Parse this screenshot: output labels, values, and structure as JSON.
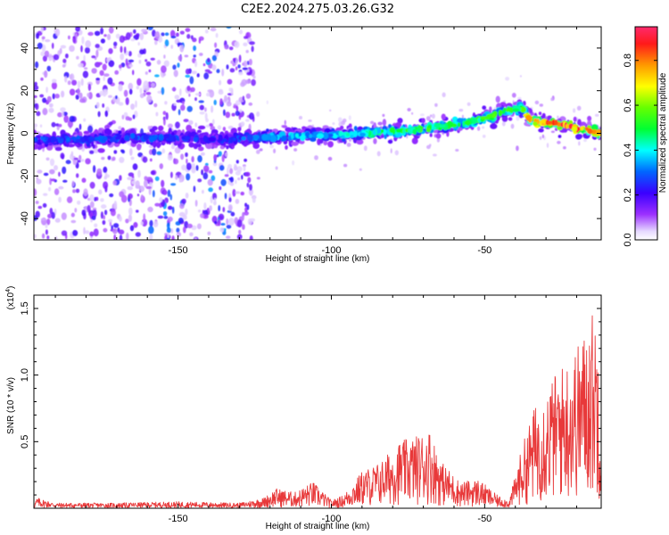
{
  "title": "C2E2.2024.275.03.26.G32",
  "chart_data": [
    {
      "type": "heatmap",
      "xlabel": "Height of straight line (km)",
      "ylabel": "Frequency (Hz)",
      "xlim": [
        -197,
        -12
      ],
      "ylim": [
        -50,
        50
      ],
      "x_ticks": [
        -150,
        -100,
        -50
      ],
      "y_ticks": [
        40,
        20,
        0,
        -20,
        -40
      ],
      "colorbar": {
        "label": "Normalized spectral amplitude",
        "range": [
          0.0,
          0.95
        ],
        "ticks": [
          0.0,
          0.2,
          0.4,
          0.6,
          0.8
        ]
      },
      "ridge": {
        "x": [
          -197,
          -180,
          -165,
          -150,
          -135,
          -125,
          -110,
          -100,
          -90,
          -80,
          -70,
          -60,
          -50,
          -42,
          -38,
          -35,
          -25,
          -12
        ],
        "y": [
          -3,
          -3,
          -2,
          -2,
          -3,
          -2,
          -1,
          -1,
          0,
          1,
          2,
          4,
          7,
          11,
          12,
          6,
          4,
          0
        ],
        "amplitude": [
          0.3,
          0.3,
          0.3,
          0.28,
          0.25,
          0.35,
          0.4,
          0.38,
          0.45,
          0.5,
          0.55,
          0.5,
          0.55,
          0.55,
          0.5,
          0.85,
          0.9,
          0.85
        ]
      },
      "noise_region": {
        "x_range": [
          -197,
          -125
        ],
        "level": 0.2
      }
    },
    {
      "type": "line",
      "xlabel": "Height of straight line (km)",
      "ylabel": "SNR (10 * v/v)",
      "y_multiplier": "(x10",
      "y_multiplier_exp": "4",
      "y_multiplier_close": ")",
      "xlim": [
        -197,
        -12
      ],
      "ylim": [
        0,
        1.6
      ],
      "x_ticks": [
        -150,
        -100,
        -50
      ],
      "y_ticks": [
        0.5,
        1.0,
        1.5
      ],
      "y_tick_labels": [
        "0.5",
        "1.0",
        "1.5"
      ],
      "series": [
        {
          "color": "#e8393a",
          "envelope_x": [
            -197,
            -196,
            -190,
            -170,
            -150,
            -130,
            -122,
            -118,
            -112,
            -106,
            -100,
            -96,
            -90,
            -84,
            -78,
            -72,
            -68,
            -64,
            -58,
            -52,
            -46,
            -42,
            -38,
            -34,
            -30,
            -26,
            -22,
            -18,
            -15,
            -13,
            -12
          ],
          "envelope_y": [
            0.03,
            0.08,
            0.04,
            0.04,
            0.05,
            0.04,
            0.08,
            0.15,
            0.12,
            0.2,
            0.06,
            0.1,
            0.28,
            0.35,
            0.5,
            0.55,
            0.6,
            0.35,
            0.2,
            0.22,
            0.1,
            0.06,
            0.45,
            0.75,
            0.9,
            1.05,
            1.15,
            1.3,
            1.5,
            1.4,
            0.5
          ]
        }
      ]
    }
  ]
}
